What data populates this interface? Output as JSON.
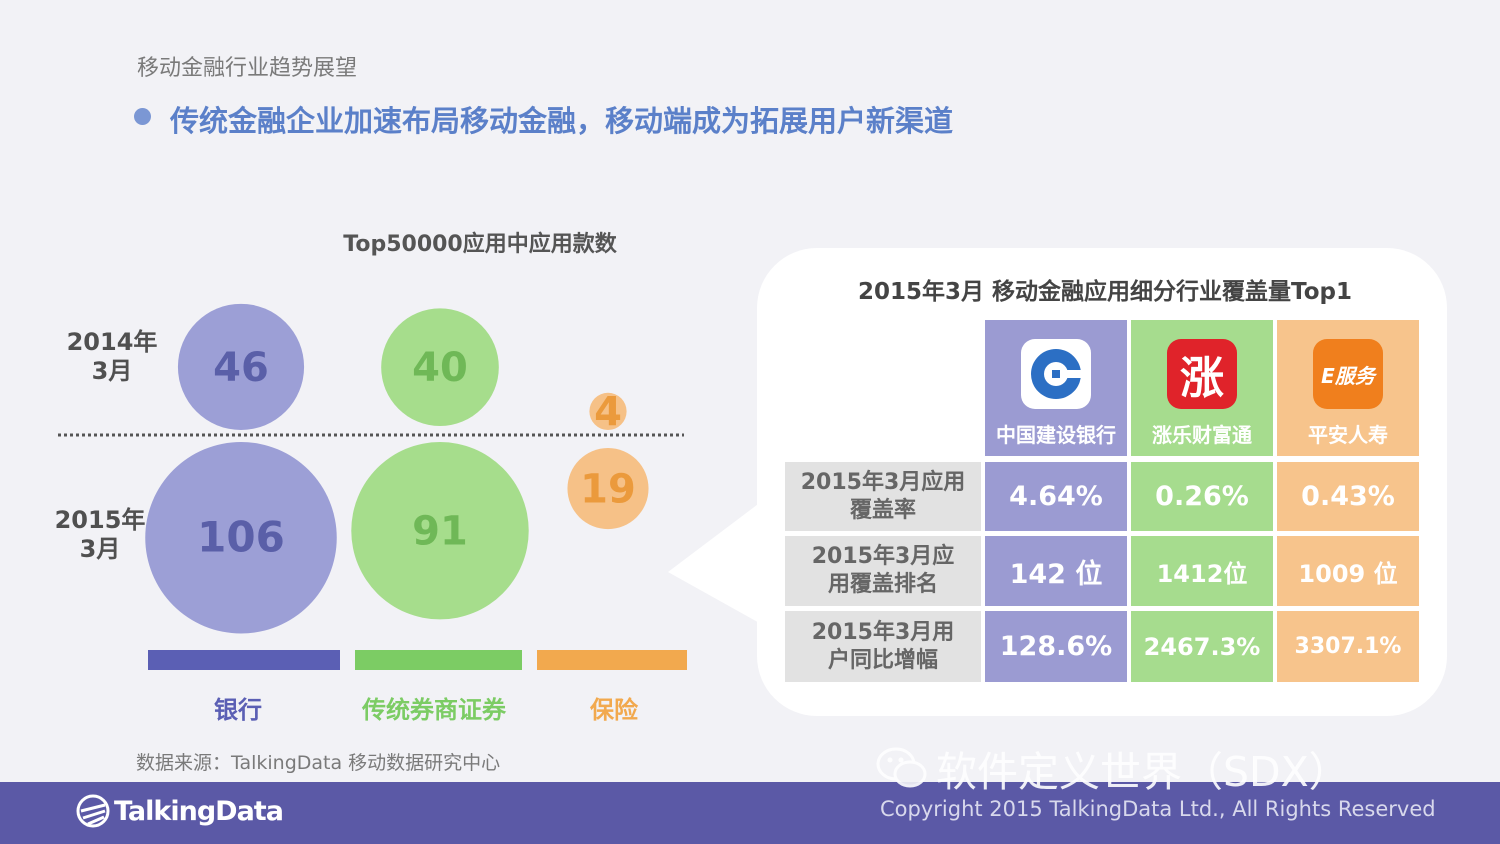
{
  "section_title": "移动金融行业趋势展望",
  "headline": "传统金融企业加速布局移动金融，移动端成为拓展用户新渠道",
  "source": "数据来源：TalkingData 移动数据研究中心",
  "footer": {
    "logo_text": "TalkingData",
    "copyright": "Copyright 2015 TalkingData Ltd., All Rights Reserved",
    "watermark": "软件定义世界（SDX）",
    "watermark_icon": "wechat-icon"
  },
  "chart_data": {
    "type": "bubble",
    "title": "Top50000应用中应用款数",
    "categories": [
      "银行",
      "传统券商证券",
      "保险"
    ],
    "category_colors": [
      "#5b5fb4",
      "#7ccc64",
      "#f2a94e"
    ],
    "bubble_fill_colors": [
      "#9c9fd6",
      "#a6dd8c",
      "#f6c187"
    ],
    "text_colors": [
      "#5a5fa8",
      "#6fb857",
      "#eb9a3c"
    ],
    "rows": [
      {
        "label": "2014年\n3月",
        "values": [
          46,
          40,
          4
        ]
      },
      {
        "label": "2015年\n3月",
        "values": [
          106,
          91,
          19
        ]
      }
    ]
  },
  "panel": {
    "title": "2015年3月 移动金融应用细分行业覆盖量Top1",
    "apps": [
      {
        "name": "中国建设银行",
        "icon": "ccb-logo-icon",
        "color": "#9b9bd2"
      },
      {
        "name": "涨乐财富通",
        "icon": "zhangle-logo-icon",
        "icon_text": "涨",
        "color": "#a6dc8e"
      },
      {
        "name": "平安人寿",
        "icon": "pingan-logo-icon",
        "icon_text": "E服务",
        "color": "#f7c48c"
      }
    ],
    "rows": [
      {
        "label": "2015年3月应用覆盖率",
        "values": [
          "4.64%",
          "0.26%",
          "0.43%"
        ]
      },
      {
        "label": "2015年3月应用覆盖排名",
        "values": [
          "142 位",
          "1412位",
          "1009 位"
        ]
      },
      {
        "label": "2015年3月用户同比增幅",
        "values": [
          "128.6%",
          "2467.3%",
          "3307.1%"
        ]
      }
    ]
  }
}
